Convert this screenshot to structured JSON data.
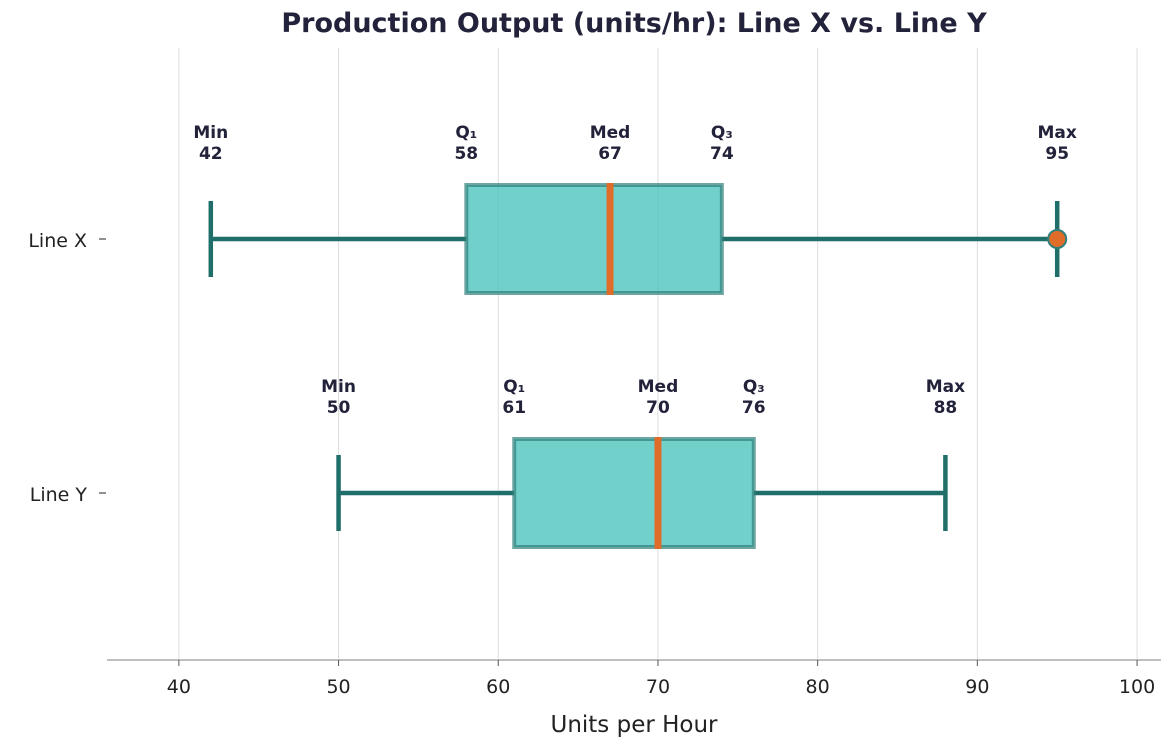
{
  "chart_data": {
    "type": "boxplot",
    "title": "Production Output (units/hr): Line X vs. Line Y",
    "xlabel": "Units per Hour",
    "ylabel": "",
    "xlim": [
      35.5,
      101.5
    ],
    "xticks": [
      40,
      50,
      60,
      70,
      80,
      90,
      100
    ],
    "grid": "vertical",
    "series": [
      {
        "name": "Line X",
        "min": 42,
        "q1": 58,
        "median": 67,
        "q3": 74,
        "max": 95,
        "outliers": [
          95
        ],
        "labels": {
          "min": "Min",
          "q1": "Q₁",
          "median": "Med",
          "q3": "Q₃",
          "max": "Max"
        }
      },
      {
        "name": "Line Y",
        "min": 50,
        "q1": 61,
        "median": 70,
        "q3": 76,
        "max": 88,
        "outliers": [],
        "labels": {
          "min": "Min",
          "q1": "Q₁",
          "median": "Med",
          "q3": "Q₃",
          "max": "Max"
        }
      }
    ],
    "colors": {
      "box_fill": "#4fc4be",
      "box_edge": "#2f7f7a",
      "whisker": "#1f6e6a",
      "median": "#e06c2a",
      "outlier": "#e06c2a",
      "grid": "#dddddd",
      "axis": "#aaaaaa"
    }
  }
}
